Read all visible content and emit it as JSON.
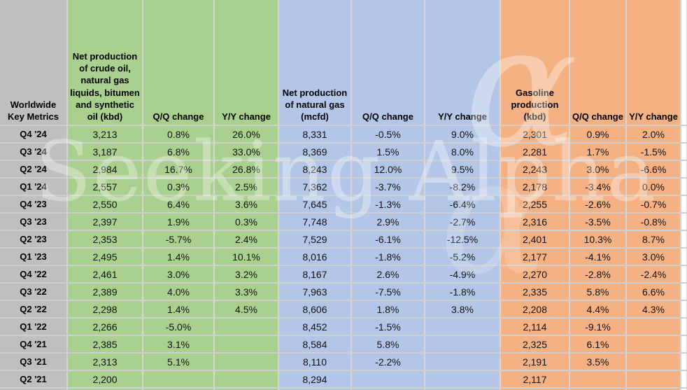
{
  "watermark": {
    "text": "Seeking Alpha",
    "alpha_glyph": "α"
  },
  "colors": {
    "row_header_gray": "#bfbfbf",
    "crude_section_green": "#a9d08e",
    "gas_section_blue": "#b4c6e7",
    "gasoline_section_orange": "#f4b183",
    "gridline": "#d5d5d5",
    "text": "#000000"
  },
  "table": {
    "row_header_title": "Worldwide Key Metrics",
    "sections": [
      {
        "name": "crude-oil",
        "color": "#a9d08e",
        "columns": [
          "Net production of crude oil, natural gas liquids, bitumen and synthetic oil (kbd)",
          "Q/Q change",
          "Y/Y change"
        ]
      },
      {
        "name": "natural-gas",
        "color": "#b4c6e7",
        "columns": [
          "Net production of natural gas (mcfd)",
          "Q/Q change",
          "Y/Y change"
        ]
      },
      {
        "name": "gasoline",
        "color": "#f4b183",
        "columns": [
          "Gasoline production (kbd)",
          "Q/Q change",
          "Y/Y change"
        ]
      }
    ],
    "rows": [
      {
        "label": "Q4 '24",
        "values": [
          "3,213",
          "0.8%",
          "26.0%",
          "8,331",
          "-0.5%",
          "9.0%",
          "2,301",
          "0.9%",
          "2.0%"
        ]
      },
      {
        "label": "Q3 '24",
        "values": [
          "3,187",
          "6.8%",
          "33.0%",
          "8,369",
          "1.5%",
          "8.0%",
          "2,281",
          "1.7%",
          "-1.5%"
        ]
      },
      {
        "label": "Q2 '24",
        "values": [
          "2,984",
          "16.7%",
          "26.8%",
          "8,243",
          "12.0%",
          "9.5%",
          "2,243",
          "3.0%",
          "-6.6%"
        ]
      },
      {
        "label": "Q1 '24",
        "values": [
          "2,557",
          "0.3%",
          "2.5%",
          "7,362",
          "-3.7%",
          "-8.2%",
          "2,178",
          "-3.4%",
          "0.0%"
        ]
      },
      {
        "label": "Q4 '23",
        "values": [
          "2,550",
          "6.4%",
          "3.6%",
          "7,645",
          "-1.3%",
          "-6.4%",
          "2,255",
          "-2.6%",
          "-0.7%"
        ]
      },
      {
        "label": "Q3 '23",
        "values": [
          "2,397",
          "1.9%",
          "0.3%",
          "7,748",
          "2.9%",
          "-2.7%",
          "2,316",
          "-3.5%",
          "-0.8%"
        ]
      },
      {
        "label": "Q2 '23",
        "values": [
          "2,353",
          "-5.7%",
          "2.4%",
          "7,529",
          "-6.1%",
          "-12.5%",
          "2,401",
          "10.3%",
          "8.7%"
        ]
      },
      {
        "label": "Q1 '23",
        "values": [
          "2,495",
          "1.4%",
          "10.1%",
          "8,016",
          "-1.8%",
          "-5.2%",
          "2,177",
          "-4.1%",
          "3.0%"
        ]
      },
      {
        "label": "Q4 '22",
        "values": [
          "2,461",
          "3.0%",
          "3.2%",
          "8,167",
          "2.6%",
          "-4.9%",
          "2,270",
          "-2.8%",
          "-2.4%"
        ]
      },
      {
        "label": "Q3 '22",
        "values": [
          "2,389",
          "4.0%",
          "3.3%",
          "7,963",
          "-7.5%",
          "-1.8%",
          "2,335",
          "5.8%",
          "6.6%"
        ]
      },
      {
        "label": "Q2 '22",
        "values": [
          "2,298",
          "1.4%",
          "4.5%",
          "8,606",
          "1.8%",
          "3.8%",
          "2,208",
          "4.4%",
          "4.3%"
        ]
      },
      {
        "label": "Q1 '22",
        "values": [
          "2,266",
          "-5.0%",
          "",
          "8,452",
          "-1.5%",
          "",
          "2,114",
          "-9.1%",
          ""
        ]
      },
      {
        "label": "Q4 '21",
        "values": [
          "2,385",
          "3.1%",
          "",
          "8,584",
          "5.8%",
          "",
          "2,325",
          "6.1%",
          ""
        ]
      },
      {
        "label": "Q3 '21",
        "values": [
          "2,313",
          "5.1%",
          "",
          "8,110",
          "-2.2%",
          "",
          "2,191",
          "3.5%",
          ""
        ]
      },
      {
        "label": "Q2 '21",
        "values": [
          "2,200",
          "",
          "",
          "8,294",
          "",
          "",
          "2,117",
          "",
          ""
        ]
      }
    ]
  },
  "chart_data": {
    "type": "table",
    "title": "Worldwide Key Metrics",
    "columns": [
      "Worldwide Key Metrics",
      "Net production of crude oil, natural gas liquids, bitumen and synthetic oil (kbd)",
      "Q/Q change",
      "Y/Y change",
      "Net production of natural gas (mcfd)",
      "Q/Q change",
      "Y/Y change",
      "Gasoline production (kbd)",
      "Q/Q change",
      "Y/Y change"
    ],
    "rows": [
      [
        "Q4 '24",
        "3,213",
        "0.8%",
        "26.0%",
        "8,331",
        "-0.5%",
        "9.0%",
        "2,301",
        "0.9%",
        "2.0%"
      ],
      [
        "Q3 '24",
        "3,187",
        "6.8%",
        "33.0%",
        "8,369",
        "1.5%",
        "8.0%",
        "2,281",
        "1.7%",
        "-1.5%"
      ],
      [
        "Q2 '24",
        "2,984",
        "16.7%",
        "26.8%",
        "8,243",
        "12.0%",
        "9.5%",
        "2,243",
        "3.0%",
        "-6.6%"
      ],
      [
        "Q1 '24",
        "2,557",
        "0.3%",
        "2.5%",
        "7,362",
        "-3.7%",
        "-8.2%",
        "2,178",
        "-3.4%",
        "0.0%"
      ],
      [
        "Q4 '23",
        "2,550",
        "6.4%",
        "3.6%",
        "7,645",
        "-1.3%",
        "-6.4%",
        "2,255",
        "-2.6%",
        "-0.7%"
      ],
      [
        "Q3 '23",
        "2,397",
        "1.9%",
        "0.3%",
        "7,748",
        "2.9%",
        "-2.7%",
        "2,316",
        "-3.5%",
        "-0.8%"
      ],
      [
        "Q2 '23",
        "2,353",
        "-5.7%",
        "2.4%",
        "7,529",
        "-6.1%",
        "-12.5%",
        "2,401",
        "10.3%",
        "8.7%"
      ],
      [
        "Q1 '23",
        "2,495",
        "1.4%",
        "10.1%",
        "8,016",
        "-1.8%",
        "-5.2%",
        "2,177",
        "-4.1%",
        "3.0%"
      ],
      [
        "Q4 '22",
        "2,461",
        "3.0%",
        "3.2%",
        "8,167",
        "2.6%",
        "-4.9%",
        "2,270",
        "-2.8%",
        "-2.4%"
      ],
      [
        "Q3 '22",
        "2,389",
        "4.0%",
        "3.3%",
        "7,963",
        "-7.5%",
        "-1.8%",
        "2,335",
        "5.8%",
        "6.6%"
      ],
      [
        "Q2 '22",
        "2,298",
        "1.4%",
        "4.5%",
        "8,606",
        "1.8%",
        "3.8%",
        "2,208",
        "4.4%",
        "4.3%"
      ],
      [
        "Q1 '22",
        "2,266",
        "-5.0%",
        "",
        "8,452",
        "-1.5%",
        "",
        "2,114",
        "-9.1%",
        ""
      ],
      [
        "Q4 '21",
        "2,385",
        "3.1%",
        "",
        "8,584",
        "5.8%",
        "",
        "2,325",
        "6.1%",
        ""
      ],
      [
        "Q3 '21",
        "2,313",
        "5.1%",
        "",
        "8,110",
        "-2.2%",
        "",
        "2,191",
        "3.5%",
        ""
      ],
      [
        "Q2 '21",
        "2,200",
        "",
        "",
        "8,294",
        "",
        "",
        "2,117",
        "",
        ""
      ]
    ]
  }
}
